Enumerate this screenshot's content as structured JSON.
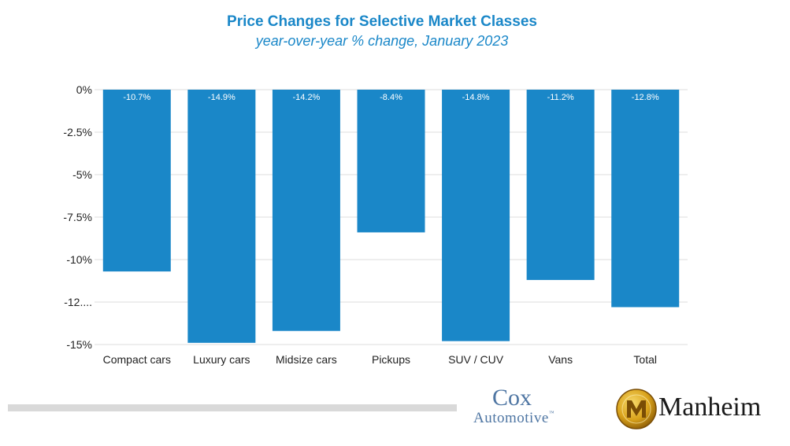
{
  "header": {
    "title": "Price Changes for Selective Market Classes",
    "subtitle": "year-over-year % change, January 2023"
  },
  "chart_data": {
    "type": "bar",
    "title": "Price Changes for Selective Market Classes",
    "subtitle": "year-over-year % change, January 2023",
    "categories": [
      "Compact cars",
      "Luxury cars",
      "Midsize cars",
      "Pickups",
      "SUV / CUV",
      "Vans",
      "Total"
    ],
    "values": [
      -10.7,
      -14.9,
      -14.2,
      -8.4,
      -14.8,
      -11.2,
      -12.8
    ],
    "data_labels": [
      "-10.7%",
      "-14.9%",
      "-14.2%",
      "-8.4%",
      "-14.8%",
      "-11.2%",
      "-12.8%"
    ],
    "ylim": [
      -15,
      0
    ],
    "yticks": [
      0,
      -2.5,
      -5,
      -7.5,
      -10,
      -12.5,
      -15
    ],
    "ytick_labels": [
      "0%",
      "-2.5%",
      "-5%",
      "-7.5%",
      "-10%",
      "-12....",
      "-15%"
    ],
    "xlabel": "",
    "ylabel": "",
    "grid": true,
    "colors": {
      "bar": "#1a87c8",
      "grid": "#dddddd",
      "text": "#222222",
      "label": "#ffffff"
    }
  },
  "footer": {
    "logo_cox_line1": "Cox",
    "logo_cox_line2": "Automotive",
    "logo_cox_tm": "™",
    "logo_manheim": "Manheim",
    "manheim_icon": "manheim-m-emblem"
  }
}
